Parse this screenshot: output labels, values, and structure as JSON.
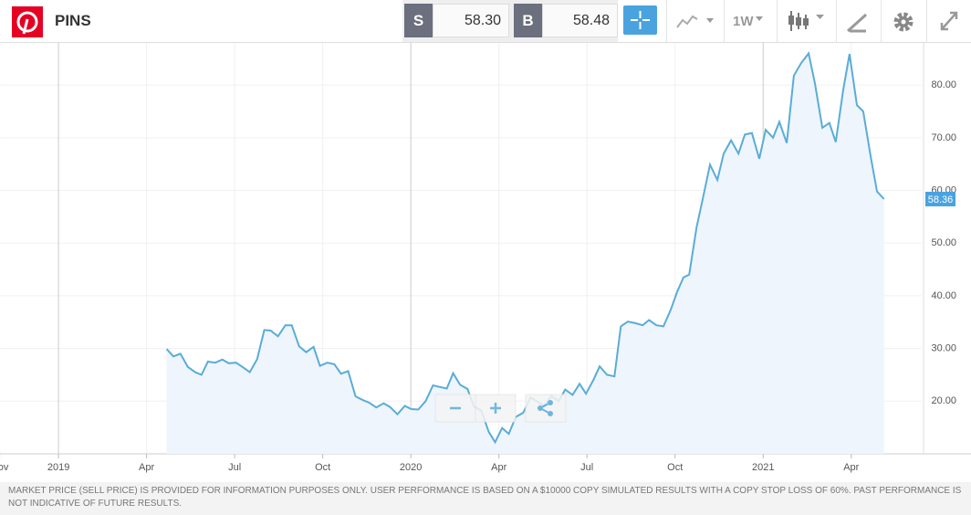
{
  "toolbar": {
    "symbol": "PINS",
    "sell_label": "S",
    "sell_price": "58.30",
    "buy_label": "B",
    "buy_price": "58.48",
    "interval": "1W"
  },
  "chart_data": {
    "type": "line",
    "color": "#5aacd8",
    "area_color": "#eef5fc",
    "grid": true,
    "last_price": 58.36,
    "xlim": [
      2018.834,
      2021.45
    ],
    "ylim": [
      10,
      88
    ],
    "xticks": [
      {
        "value": 2018.833,
        "label": "Nov"
      },
      {
        "value": 2019,
        "label": "2019"
      },
      {
        "value": 2019.25,
        "label": "Apr"
      },
      {
        "value": 2019.5,
        "label": "Jul"
      },
      {
        "value": 2019.75,
        "label": "Oct"
      },
      {
        "value": 2020,
        "label": "2020"
      },
      {
        "value": 2020.25,
        "label": "Apr"
      },
      {
        "value": 2020.5,
        "label": "Jul"
      },
      {
        "value": 2020.75,
        "label": "Oct"
      },
      {
        "value": 2021,
        "label": "2021"
      },
      {
        "value": 2021.25,
        "label": "Apr"
      }
    ],
    "yticks": [
      {
        "value": 20,
        "label": "20.00"
      },
      {
        "value": 30,
        "label": "30.00"
      },
      {
        "value": 40,
        "label": "40.00"
      },
      {
        "value": 50,
        "label": "50.00"
      },
      {
        "value": 60,
        "label": "60.00"
      },
      {
        "value": 70,
        "label": "70.00"
      },
      {
        "value": 80,
        "label": "80.00"
      }
    ],
    "x": [
      2019.307,
      2019.326,
      2019.346,
      2019.367,
      2019.388,
      2019.406,
      2019.424,
      2019.445,
      2019.465,
      2019.483,
      2019.504,
      2019.522,
      2019.543,
      2019.564,
      2019.584,
      2019.602,
      2019.623,
      2019.644,
      2019.662,
      2019.683,
      2019.703,
      2019.724,
      2019.742,
      2019.763,
      2019.783,
      2019.802,
      2019.822,
      2019.843,
      2019.864,
      2019.882,
      2019.902,
      2019.923,
      2019.941,
      2019.962,
      2019.983,
      2020.001,
      2020.021,
      2020.042,
      2020.063,
      2020.081,
      2020.102,
      2020.12,
      2020.14,
      2020.161,
      2020.179,
      2020.2,
      2020.221,
      2020.239,
      2020.259,
      2020.278,
      2020.298,
      2020.319,
      2020.34,
      2020.36,
      2020.378,
      2020.399,
      2020.42,
      2020.438,
      2020.459,
      2020.479,
      2020.497,
      2020.518,
      2020.536,
      2020.557,
      2020.578,
      2020.596,
      2020.616,
      2020.637,
      2020.658,
      2020.676,
      2020.697,
      2020.717,
      2020.738,
      2020.756,
      2020.774,
      2020.79,
      2020.811,
      2020.829,
      2020.849,
      2020.87,
      2020.888,
      2020.909,
      2020.93,
      2020.948,
      2020.968,
      2020.989,
      2021.007,
      2021.028,
      2021.046,
      2021.067,
      2021.087,
      2021.108,
      2021.129,
      2021.147,
      2021.168,
      2021.188,
      2021.206,
      2021.227,
      2021.245,
      2021.266,
      2021.284,
      2021.305,
      2021.323,
      2021.343
    ],
    "values": [
      29.9,
      28.5,
      29.0,
      26.5,
      25.5,
      25.0,
      27.5,
      27.3,
      27.9,
      27.2,
      27.3,
      26.5,
      25.5,
      28.0,
      33.5,
      33.4,
      32.3,
      34.4,
      34.4,
      30.4,
      29.3,
      30.3,
      26.7,
      27.3,
      27.0,
      25.2,
      25.7,
      20.9,
      20.2,
      19.7,
      18.8,
      19.6,
      18.9,
      17.5,
      19.1,
      18.5,
      18.4,
      20.0,
      23.0,
      22.7,
      22.4,
      25.3,
      23.1,
      22.3,
      19.0,
      18.2,
      14.2,
      12.2,
      14.9,
      13.8,
      17.0,
      17.8,
      20.7,
      19.9,
      19.1,
      21.0,
      20.0,
      22.2,
      21.2,
      23.3,
      21.4,
      24.0,
      26.6,
      25.0,
      24.7,
      34.2,
      35.1,
      34.8,
      34.4,
      35.4,
      34.4,
      34.2,
      37.4,
      40.8,
      43.5,
      44.0,
      53.0,
      58.5,
      64.9,
      62.0,
      67.0,
      69.5,
      67.0,
      70.6,
      70.9,
      66.0,
      71.5,
      70.0,
      73.0,
      69.0,
      81.8,
      84.2,
      86.0,
      80.3,
      71.9,
      72.8,
      69.2,
      79.0,
      85.9,
      76.2,
      75.0,
      66.5,
      59.8,
      58.36
    ]
  },
  "disclaimer": "MARKET PRICE (SELL PRICE) IS PROVIDED FOR INFORMATION PURPOSES ONLY. USER PERFORMANCE IS BASED ON A $10000 COPY SIMULATED RESULTS WITH A COPY STOP LOSS OF 60%. PAST PERFORMANCE IS NOT INDICATIVE OF FUTURE RESULTS."
}
